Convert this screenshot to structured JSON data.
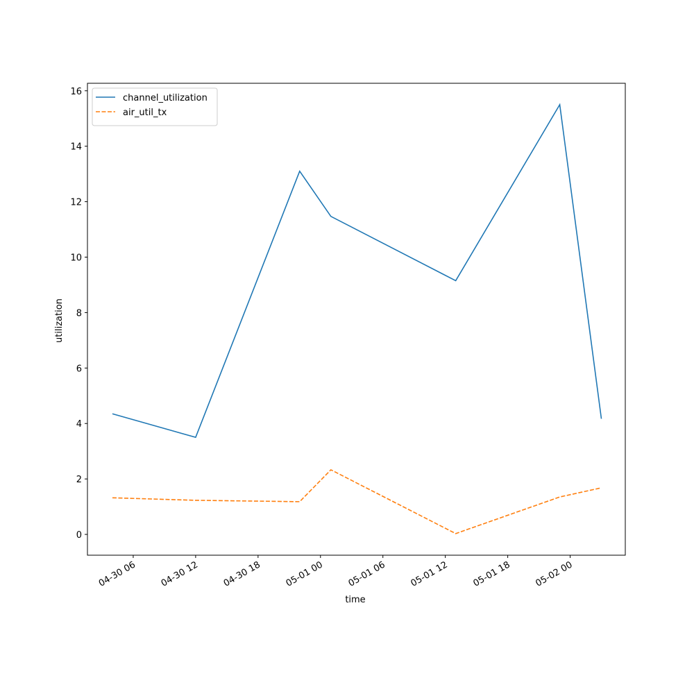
{
  "chart_data": {
    "type": "line",
    "xlabel": "time",
    "ylabel": "utilization",
    "x": [
      "04-30 04",
      "04-30 12",
      "04-30 22",
      "05-01 01",
      "05-01 13",
      "05-01 23",
      "05-02 03"
    ],
    "series": [
      {
        "name": "channel_utilization",
        "color": "#1f77b4",
        "linestyle": "solid",
        "values": [
          4.35,
          3.5,
          13.1,
          11.47,
          9.15,
          15.5,
          4.17
        ]
      },
      {
        "name": "air_util_tx",
        "color": "#ff7f0e",
        "linestyle": "dashed",
        "values": [
          1.32,
          1.23,
          1.18,
          2.33,
          0.03,
          1.35,
          1.68
        ]
      }
    ],
    "xlim": [
      "04-30 01:36",
      "05-02 05:18"
    ],
    "xticks": [
      "04-30 06",
      "04-30 12",
      "04-30 18",
      "05-01 00",
      "05-01 06",
      "05-01 12",
      "05-01 18",
      "05-02 00"
    ],
    "ylim": [
      -0.75,
      16.27
    ],
    "yticks": [
      0,
      2,
      4,
      6,
      8,
      10,
      12,
      14,
      16
    ],
    "legend": "upper left"
  }
}
